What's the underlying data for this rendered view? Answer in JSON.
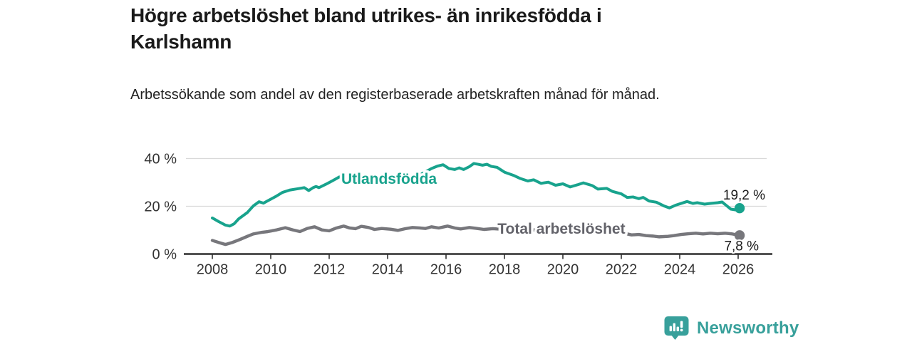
{
  "header": {
    "title": "Högre arbetslöshet bland utrikes- än inrikesfödda i Karlshamn",
    "subtitle": "Arbetssökande som andel av den registerbaserade arbetskraften månad för månad."
  },
  "footer": {
    "brand": "Newsworthy"
  },
  "colors": {
    "accent_teal": "#18a38d",
    "line_gray": "#77777c",
    "label_gray": "#63636a",
    "axis": "#2f2f2f",
    "grid": "#d9d9d9",
    "tick_text": "#333333",
    "value_text": "#1a1a1a",
    "logo_teal": "#38a09b",
    "background": "#ffffff"
  },
  "chart_data": {
    "type": "line",
    "title": "",
    "xlabel": "",
    "ylabel": "",
    "grid": "horizontal",
    "legend_position": "inline-labels",
    "xlim": [
      2008,
      2026.4
    ],
    "ylim": [
      0,
      42
    ],
    "x_ticks": [
      2008,
      2010,
      2012,
      2014,
      2016,
      2018,
      2020,
      2022,
      2024,
      2026
    ],
    "y_ticks": [
      {
        "value": 0,
        "label": "0 %"
      },
      {
        "value": 20,
        "label": "20 %"
      },
      {
        "value": 40,
        "label": "40 %"
      }
    ],
    "series": [
      {
        "name": "Utlandsfödda",
        "color": "#18a38d",
        "label_color": "#18a38d",
        "width": 4,
        "end_value_label": "19,2 %",
        "end_value": 19.2,
        "label_at": [
          2014.05,
          29.4
        ],
        "end_label_offset": [
          36,
          -12
        ],
        "points": [
          [
            2008.0,
            15.1
          ],
          [
            2008.2,
            13.7
          ],
          [
            2008.45,
            12.1
          ],
          [
            2008.6,
            11.7
          ],
          [
            2008.75,
            12.7
          ],
          [
            2008.9,
            14.7
          ],
          [
            2009.2,
            17.4
          ],
          [
            2009.4,
            20.1
          ],
          [
            2009.6,
            21.9
          ],
          [
            2009.75,
            21.3
          ],
          [
            2009.9,
            22.3
          ],
          [
            2010.2,
            24.3
          ],
          [
            2010.4,
            25.8
          ],
          [
            2010.65,
            26.8
          ],
          [
            2010.9,
            27.3
          ],
          [
            2011.15,
            27.8
          ],
          [
            2011.3,
            26.6
          ],
          [
            2011.45,
            27.8
          ],
          [
            2011.55,
            28.3
          ],
          [
            2011.65,
            27.8
          ],
          [
            2011.9,
            29.3
          ],
          [
            2012.1,
            30.6
          ],
          [
            2012.35,
            32.3
          ],
          [
            2012.6,
            31.4
          ],
          [
            2012.8,
            30.8
          ],
          [
            2013.0,
            31.2
          ],
          [
            2013.2,
            31.8
          ],
          [
            2013.4,
            31.3
          ],
          [
            2013.6,
            30.7
          ],
          [
            2013.8,
            30.9
          ],
          [
            2014.0,
            30.6
          ],
          [
            2014.3,
            31.0
          ],
          [
            2014.6,
            31.6
          ],
          [
            2014.9,
            32.2
          ],
          [
            2015.1,
            33.2
          ],
          [
            2015.3,
            34.4
          ],
          [
            2015.5,
            35.8
          ],
          [
            2015.7,
            36.8
          ],
          [
            2015.9,
            37.4
          ],
          [
            2016.1,
            35.8
          ],
          [
            2016.3,
            35.4
          ],
          [
            2016.45,
            36.1
          ],
          [
            2016.6,
            35.4
          ],
          [
            2016.8,
            36.6
          ],
          [
            2016.95,
            37.9
          ],
          [
            2017.1,
            37.6
          ],
          [
            2017.25,
            37.2
          ],
          [
            2017.4,
            37.6
          ],
          [
            2017.55,
            36.7
          ],
          [
            2017.75,
            36.3
          ],
          [
            2018.0,
            34.3
          ],
          [
            2018.3,
            33.0
          ],
          [
            2018.55,
            31.6
          ],
          [
            2018.8,
            30.6
          ],
          [
            2019.0,
            31.1
          ],
          [
            2019.25,
            29.6
          ],
          [
            2019.5,
            30.1
          ],
          [
            2019.75,
            28.8
          ],
          [
            2020.0,
            29.4
          ],
          [
            2020.25,
            28.1
          ],
          [
            2020.5,
            29.0
          ],
          [
            2020.7,
            29.8
          ],
          [
            2021.0,
            28.7
          ],
          [
            2021.2,
            27.2
          ],
          [
            2021.5,
            27.5
          ],
          [
            2021.7,
            26.2
          ],
          [
            2022.0,
            25.2
          ],
          [
            2022.2,
            23.7
          ],
          [
            2022.4,
            23.9
          ],
          [
            2022.6,
            23.2
          ],
          [
            2022.75,
            23.7
          ],
          [
            2022.95,
            22.2
          ],
          [
            2023.2,
            21.7
          ],
          [
            2023.45,
            20.2
          ],
          [
            2023.65,
            19.3
          ],
          [
            2023.85,
            20.4
          ],
          [
            2024.1,
            21.4
          ],
          [
            2024.25,
            22.0
          ],
          [
            2024.45,
            21.2
          ],
          [
            2024.6,
            21.5
          ],
          [
            2024.85,
            20.9
          ],
          [
            2025.05,
            21.2
          ],
          [
            2025.3,
            21.5
          ],
          [
            2025.45,
            21.8
          ],
          [
            2025.6,
            20.3
          ],
          [
            2025.75,
            18.8
          ],
          [
            2025.9,
            18.5
          ],
          [
            2026.05,
            19.2
          ]
        ]
      },
      {
        "name": "Total arbetslöshet",
        "color": "#77777c",
        "label_color": "#63636a",
        "width": 4.4,
        "end_value_label": "7,8 %",
        "end_value": 7.8,
        "label_at": [
          2019.95,
          8.5
        ],
        "end_label_offset": [
          27,
          21
        ],
        "points": [
          [
            2008.0,
            5.7
          ],
          [
            2008.2,
            4.9
          ],
          [
            2008.45,
            4.0
          ],
          [
            2008.7,
            4.9
          ],
          [
            2008.95,
            6.1
          ],
          [
            2009.2,
            7.4
          ],
          [
            2009.4,
            8.4
          ],
          [
            2009.7,
            9.1
          ],
          [
            2009.9,
            9.4
          ],
          [
            2010.2,
            10.1
          ],
          [
            2010.5,
            11.0
          ],
          [
            2010.75,
            10.1
          ],
          [
            2011.0,
            9.4
          ],
          [
            2011.25,
            10.7
          ],
          [
            2011.5,
            11.4
          ],
          [
            2011.75,
            10.1
          ],
          [
            2012.0,
            9.7
          ],
          [
            2012.25,
            10.9
          ],
          [
            2012.5,
            11.7
          ],
          [
            2012.7,
            10.9
          ],
          [
            2012.9,
            10.6
          ],
          [
            2013.1,
            11.6
          ],
          [
            2013.35,
            11.1
          ],
          [
            2013.55,
            10.3
          ],
          [
            2013.8,
            10.7
          ],
          [
            2014.1,
            10.4
          ],
          [
            2014.35,
            9.9
          ],
          [
            2014.6,
            10.6
          ],
          [
            2014.85,
            11.1
          ],
          [
            2015.1,
            10.9
          ],
          [
            2015.3,
            10.7
          ],
          [
            2015.5,
            11.4
          ],
          [
            2015.75,
            10.9
          ],
          [
            2016.05,
            11.7
          ],
          [
            2016.3,
            10.9
          ],
          [
            2016.5,
            10.5
          ],
          [
            2016.8,
            11.1
          ],
          [
            2017.0,
            10.8
          ],
          [
            2017.3,
            10.3
          ],
          [
            2017.6,
            10.6
          ],
          [
            2017.9,
            10.4
          ],
          [
            2018.2,
            10.6
          ],
          [
            2018.5,
            10.1
          ],
          [
            2018.8,
            10.3
          ],
          [
            2019.1,
            10.0
          ],
          [
            2019.4,
            9.8
          ],
          [
            2019.7,
            10.0
          ],
          [
            2020.0,
            9.9
          ],
          [
            2020.3,
            10.2
          ],
          [
            2020.6,
            10.0
          ],
          [
            2020.9,
            9.8
          ],
          [
            2021.2,
            9.6
          ],
          [
            2021.5,
            9.4
          ],
          [
            2021.8,
            9.2
          ],
          [
            2022.1,
            8.7
          ],
          [
            2022.35,
            8.0
          ],
          [
            2022.6,
            8.2
          ],
          [
            2022.85,
            7.7
          ],
          [
            2023.1,
            7.5
          ],
          [
            2023.3,
            7.2
          ],
          [
            2023.6,
            7.4
          ],
          [
            2023.8,
            7.7
          ],
          [
            2024.05,
            8.2
          ],
          [
            2024.3,
            8.5
          ],
          [
            2024.55,
            8.7
          ],
          [
            2024.8,
            8.4
          ],
          [
            2025.05,
            8.7
          ],
          [
            2025.3,
            8.5
          ],
          [
            2025.55,
            8.7
          ],
          [
            2025.8,
            8.4
          ],
          [
            2026.05,
            7.8
          ]
        ]
      }
    ]
  }
}
